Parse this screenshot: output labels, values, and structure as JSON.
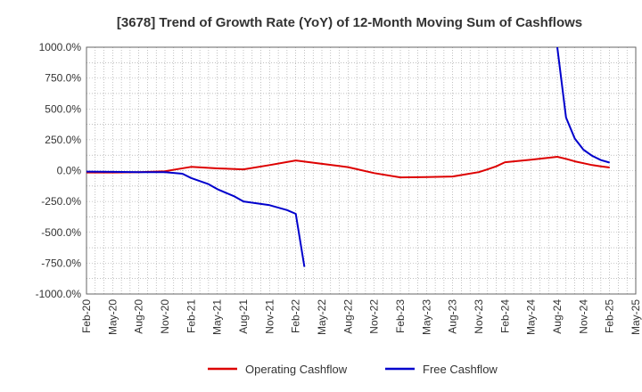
{
  "chart_data": {
    "type": "line",
    "title": "[3678]  Trend of Growth Rate (YoY) of 12-Month Moving Sum of Cashflows",
    "xlabel": "",
    "ylabel": "",
    "ylim": [
      -1000,
      1000
    ],
    "y_ticks": [
      "1000.0%",
      "750.0%",
      "500.0%",
      "250.0%",
      "0.0%",
      "-250.0%",
      "-500.0%",
      "-750.0%",
      "-1000.0%"
    ],
    "x_ticks": [
      "Feb-20",
      "May-20",
      "Aug-20",
      "Nov-20",
      "Feb-21",
      "May-21",
      "Aug-21",
      "Nov-21",
      "Feb-22",
      "May-22",
      "Aug-22",
      "Nov-22",
      "Feb-23",
      "May-23",
      "Aug-23",
      "Nov-23",
      "Feb-24",
      "May-24",
      "Aug-24",
      "Nov-24",
      "Feb-25",
      "May-25"
    ],
    "grid": true,
    "legend_position": "bottom",
    "series": [
      {
        "name": "Operating Cashflow",
        "color": "#dd0000",
        "points": [
          [
            "Feb-20",
            -15
          ],
          [
            "May-20",
            -15
          ],
          [
            "Aug-20",
            -12
          ],
          [
            "Nov-20",
            -5
          ],
          [
            "Feb-21",
            30
          ],
          [
            "May-21",
            18
          ],
          [
            "Aug-21",
            10
          ],
          [
            "Nov-21",
            45
          ],
          [
            "Feb-22",
            82
          ],
          [
            "May-22",
            55
          ],
          [
            "Aug-22",
            28
          ],
          [
            "Nov-22",
            -20
          ],
          [
            "Feb-23",
            -55
          ],
          [
            "May-23",
            -52
          ],
          [
            "Aug-23",
            -48
          ],
          [
            "Nov-23",
            -12
          ],
          [
            "Dec-23",
            10
          ],
          [
            "Jan-24",
            35
          ],
          [
            "Feb-24",
            68
          ],
          [
            "May-24",
            88
          ],
          [
            "Aug-24",
            112
          ],
          [
            "Sep-24",
            95
          ],
          [
            "Oct-24",
            75
          ],
          [
            "Nov-24",
            60
          ],
          [
            "Dec-24",
            45
          ],
          [
            "Jan-25",
            35
          ],
          [
            "Feb-25",
            25
          ]
        ]
      },
      {
        "name": "Free Cashflow",
        "color": "#0000cc",
        "segments": [
          [
            [
              "Feb-20",
              -8
            ],
            [
              "May-20",
              -10
            ],
            [
              "Aug-20",
              -12
            ],
            [
              "Nov-20",
              -12
            ],
            [
              "Jan-21",
              -25
            ],
            [
              "Feb-21",
              -60
            ],
            [
              "Apr-21",
              -110
            ],
            [
              "May-21",
              -150
            ],
            [
              "Jul-21",
              -210
            ],
            [
              "Aug-21",
              -250
            ],
            [
              "Nov-21",
              -280
            ],
            [
              "Dec-21",
              -300
            ],
            [
              "Jan-22",
              -320
            ],
            [
              "Feb-22",
              -350
            ],
            [
              "Mar-22",
              -780
            ]
          ],
          [
            [
              "Aug-24",
              1000
            ],
            [
              "Sep-24",
              430
            ],
            [
              "Oct-24",
              260
            ],
            [
              "Nov-24",
              170
            ],
            [
              "Dec-24",
              120
            ],
            [
              "Jan-25",
              85
            ],
            [
              "Feb-25",
              65
            ]
          ]
        ]
      }
    ]
  }
}
